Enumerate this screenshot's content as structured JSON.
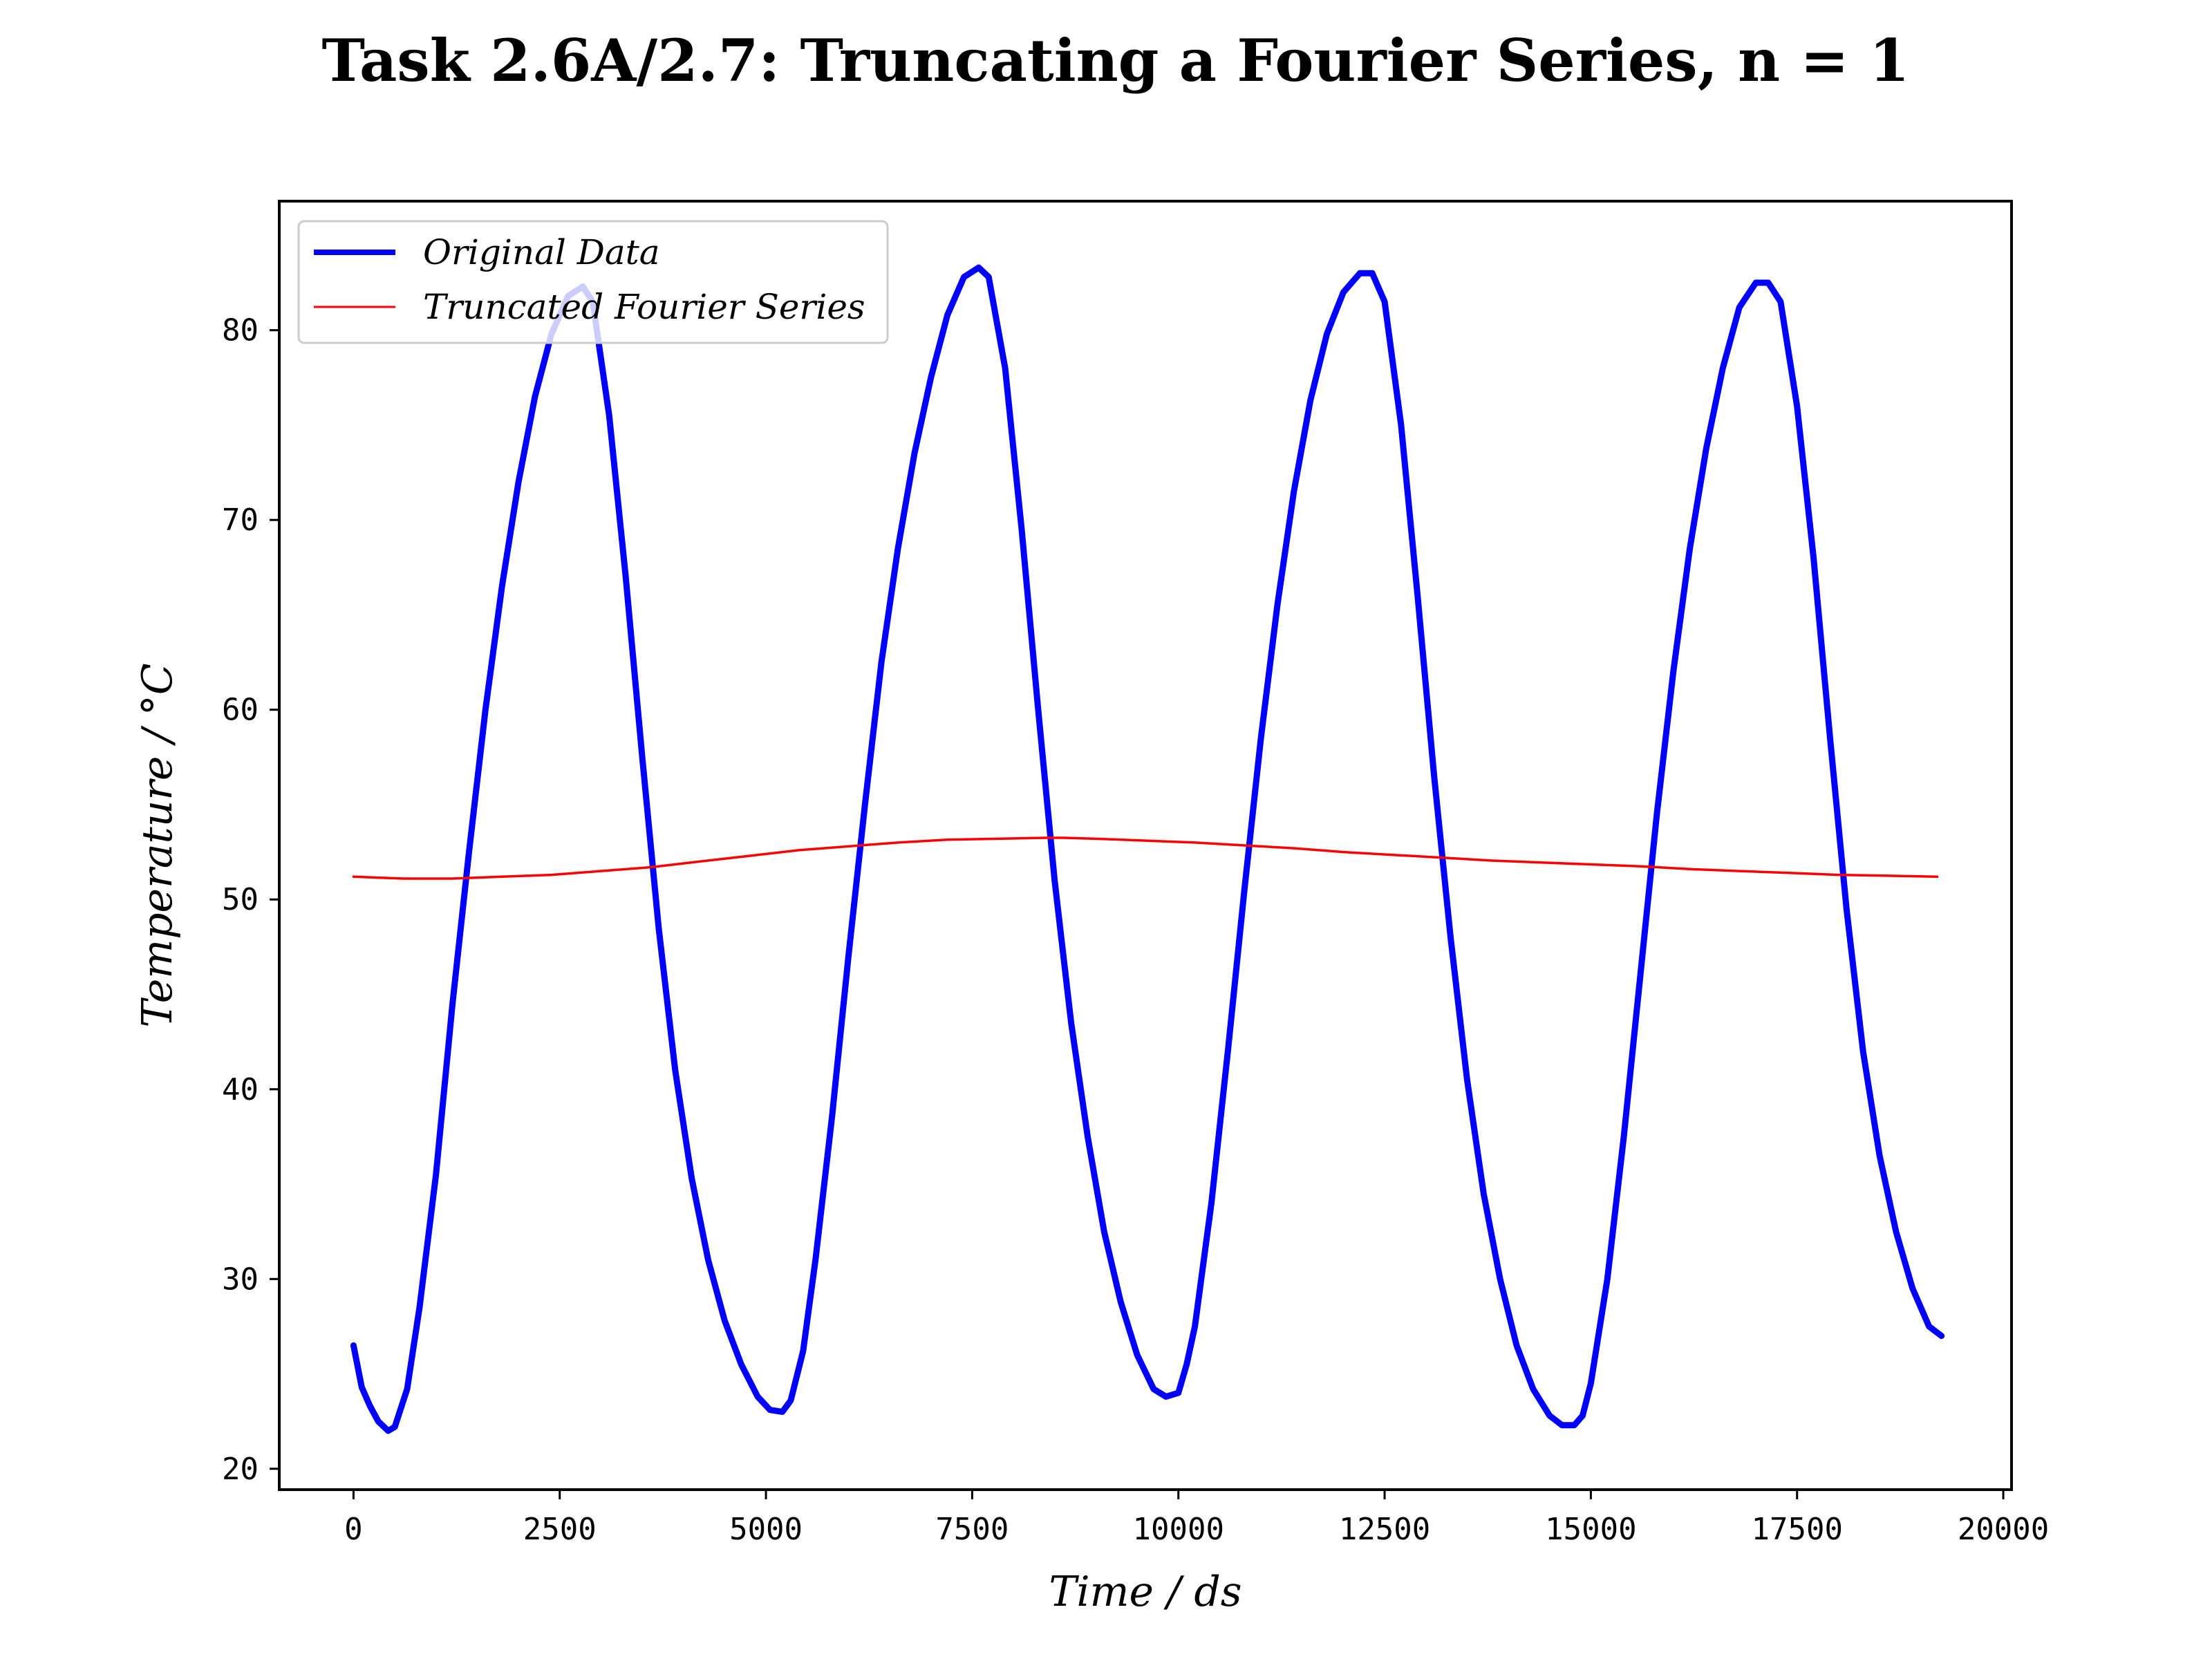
{
  "chart_data": {
    "type": "line",
    "title": "Task 2.6A/2.7: Truncating a Fourier Series, n = 1",
    "xlabel": "Time / ds",
    "ylabel": "Temperature / °C",
    "xlim": [
      -900,
      20100
    ],
    "ylim": [
      18.9,
      86.8
    ],
    "xticks": [
      0,
      2500,
      5000,
      7500,
      10000,
      12500,
      15000,
      17500,
      20000
    ],
    "yticks": [
      20,
      30,
      40,
      50,
      60,
      70,
      80
    ],
    "grid": false,
    "legend_position": "upper-left",
    "series": [
      {
        "name": "Original Data",
        "color": "#0000ff",
        "x": [
          0,
          100,
          200,
          300,
          420,
          500,
          650,
          800,
          1000,
          1200,
          1400,
          1600,
          1800,
          2000,
          2200,
          2400,
          2600,
          2780,
          2900,
          3100,
          3300,
          3500,
          3700,
          3900,
          4100,
          4300,
          4500,
          4700,
          4900,
          5050,
          5200,
          5300,
          5450,
          5600,
          5800,
          6000,
          6200,
          6400,
          6600,
          6800,
          7000,
          7200,
          7400,
          7580,
          7700,
          7900,
          8100,
          8300,
          8500,
          8700,
          8900,
          9100,
          9300,
          9500,
          9700,
          9850,
          10000,
          10100,
          10200,
          10400,
          10600,
          10800,
          11000,
          11200,
          11400,
          11600,
          11800,
          12000,
          12200,
          12350,
          12500,
          12700,
          12900,
          13100,
          13300,
          13500,
          13700,
          13900,
          14100,
          14300,
          14500,
          14650,
          14800,
          14900,
          15000,
          15200,
          15400,
          15600,
          15800,
          16000,
          16200,
          16400,
          16600,
          16800,
          17000,
          17150,
          17300,
          17500,
          17700,
          17900,
          18100,
          18300,
          18500,
          18700,
          18900,
          19100,
          19250
        ],
        "y": [
          26.5,
          24.3,
          23.3,
          22.5,
          22.0,
          22.2,
          24.2,
          28.5,
          35.5,
          44.5,
          52.5,
          60.0,
          66.5,
          72.0,
          76.5,
          79.8,
          81.8,
          82.3,
          81.5,
          75.5,
          67.0,
          57.5,
          48.5,
          41.0,
          35.3,
          31.0,
          27.8,
          25.5,
          23.8,
          23.1,
          23.0,
          23.6,
          26.2,
          31.0,
          38.5,
          47.0,
          55.0,
          62.5,
          68.5,
          73.5,
          77.5,
          80.8,
          82.8,
          83.3,
          82.8,
          78.0,
          69.5,
          60.0,
          51.0,
          43.5,
          37.5,
          32.5,
          28.8,
          26.0,
          24.2,
          23.8,
          24.0,
          25.5,
          27.5,
          34.0,
          42.0,
          50.5,
          58.5,
          65.5,
          71.5,
          76.3,
          79.8,
          82.0,
          83.0,
          83.0,
          81.5,
          75.0,
          66.0,
          56.5,
          48.0,
          40.5,
          34.5,
          30.0,
          26.5,
          24.2,
          22.8,
          22.3,
          22.3,
          22.8,
          24.5,
          30.0,
          37.5,
          46.0,
          54.5,
          62.0,
          68.5,
          73.8,
          78.0,
          81.2,
          82.5,
          82.5,
          81.5,
          76.0,
          68.0,
          58.5,
          49.5,
          42.0,
          36.5,
          32.5,
          29.5,
          27.5,
          27.0
        ]
      },
      {
        "name": "Truncated Fourier Series",
        "color": "#ff0000",
        "x": [
          0,
          600,
          1200,
          1800,
          2400,
          3000,
          3600,
          4200,
          4800,
          5400,
          6000,
          6600,
          7200,
          7800,
          8400,
          8600,
          9000,
          9600,
          10200,
          10800,
          11400,
          12000,
          12600,
          13200,
          13800,
          14400,
          15000,
          15600,
          16200,
          16800,
          17400,
          18000,
          18600,
          19200
        ],
        "y": [
          51.2,
          51.1,
          51.1,
          51.2,
          51.3,
          51.5,
          51.7,
          52.0,
          52.3,
          52.6,
          52.8,
          53.0,
          53.15,
          53.2,
          53.25,
          53.25,
          53.2,
          53.1,
          53.0,
          52.85,
          52.7,
          52.5,
          52.35,
          52.2,
          52.05,
          51.95,
          51.85,
          51.75,
          51.6,
          51.5,
          51.4,
          51.3,
          51.25,
          51.2
        ]
      }
    ]
  }
}
